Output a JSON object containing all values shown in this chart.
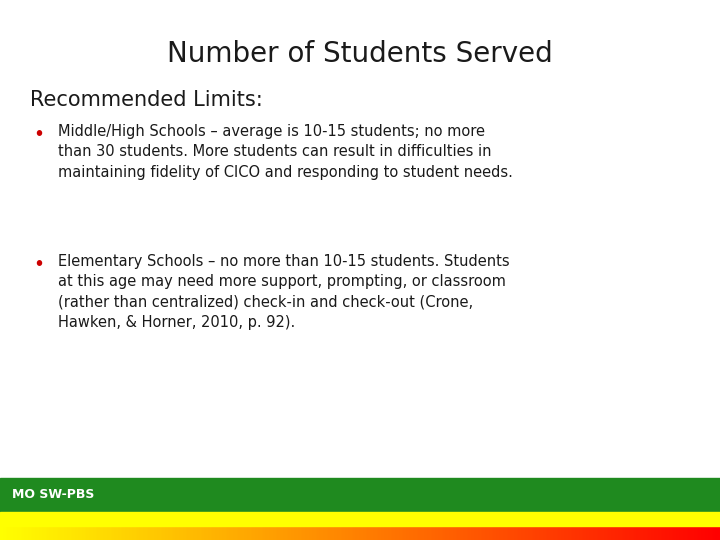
{
  "title": "Number of Students Served",
  "subtitle": "Recommended Limits:",
  "bullet1_text": "Middle/High Schools – average is 10-15 students; no more\nthan 30 students. More students can result in difficulties in\nmaintaining fidelity of CICO and responding to student needs.",
  "bullet2_text": "Elementary Schools – no more than 10-15 students. Students\nat this age may need more support, prompting, or classroom\n(rather than centralized) check-in and check-out (Crone,\nHawken, & Horner, 2010, p. 92).",
  "footer_text": "MO SW-PBS",
  "background_color": "#ffffff",
  "title_color": "#1a1a1a",
  "body_color": "#1a1a1a",
  "bullet_color": "#cc0000",
  "bar_green": "#1f8a1f",
  "bar_yellow": "#ffff00",
  "bar_red": "#ff0000",
  "footer_text_color": "#ffffff",
  "title_fontsize": 20,
  "subtitle_fontsize": 15,
  "body_fontsize": 10.5,
  "footer_fontsize": 9
}
